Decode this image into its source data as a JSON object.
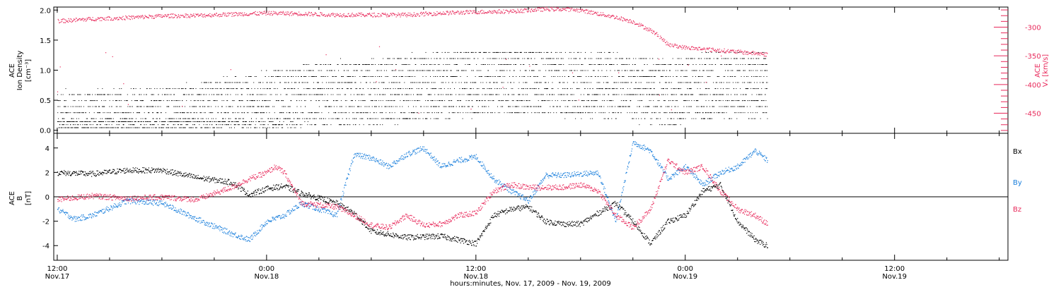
{
  "colors": {
    "black": "#000000",
    "pink": "#e8285a",
    "blue": "#1a7fdc"
  },
  "x_axis": {
    "ticks": [
      {
        "time": "12:00",
        "date": "Nov.17",
        "hours": 12
      },
      {
        "time": "0:00",
        "date": "Nov.18",
        "hours": 24
      },
      {
        "time": "12:00",
        "date": "Nov.18",
        "hours": 36
      },
      {
        "time": "0:00",
        "date": "Nov.19",
        "hours": 48
      },
      {
        "time": "12:00",
        "date": "Nov.19",
        "hours": 60
      }
    ],
    "title": "hours:minutes, Nov. 17, 2009 - Nov. 19, 2009"
  },
  "chart_data": [
    {
      "type": "scatter",
      "panel": "top",
      "ylabel_left": [
        "ACE",
        "Ion Density",
        "[cm⁻³]"
      ],
      "ylabel_right": [
        "ACE",
        "Vₓ [km/s]"
      ],
      "ylim_left": [
        -0.05,
        2.05
      ],
      "yticks_left": [
        "0.0",
        "0.5",
        "1.0",
        "1.5",
        "2.0"
      ],
      "ylim_right": [
        -485,
        -265
      ],
      "yticks_right": [
        "-300",
        "-350",
        "-400",
        "-450"
      ],
      "xlim_hours": [
        11.8,
        66.5
      ],
      "series": [
        {
          "color_key": "black",
          "axis": "left",
          "note": "quantized density levels (dense dots)",
          "x": [
            12,
            18,
            23,
            24,
            28,
            32,
            36,
            40,
            44,
            47,
            48,
            50,
            52.7
          ],
          "y": [
            0.1,
            0.2,
            0.35,
            0.45,
            0.6,
            0.7,
            0.8,
            0.8,
            0.75,
            0.6,
            0.7,
            0.75,
            0.75
          ]
        },
        {
          "color_key": "pink",
          "axis": "right",
          "x": [
            12,
            14,
            16,
            18,
            20,
            21,
            22,
            24,
            26,
            28,
            30,
            32,
            34,
            36,
            38,
            40,
            41,
            42,
            44,
            45,
            46,
            46.5,
            47,
            48,
            50,
            52,
            52.7
          ],
          "y": [
            -289,
            -285,
            -283,
            -280,
            -279,
            -278,
            -277,
            -275,
            -276,
            -278,
            -278,
            -278,
            -275,
            -273,
            -272,
            -268,
            -268,
            -270,
            -282,
            -290,
            -305,
            -315,
            -330,
            -335,
            -340,
            -345,
            -347
          ]
        }
      ]
    },
    {
      "type": "scatter",
      "panel": "bottom",
      "ylabel_left": [
        "ACE",
        "B",
        "[nT]"
      ],
      "ylim": [
        -5.2,
        5.2
      ],
      "yticks": [
        "4",
        "2",
        "0",
        "-2",
        "-4"
      ],
      "zero_line": true,
      "legend": [
        {
          "label": "Bx",
          "color_key": "black"
        },
        {
          "label": "By",
          "color_key": "blue"
        },
        {
          "label": "Bz",
          "color_key": "pink"
        }
      ],
      "xlim_hours": [
        11.8,
        66.5
      ],
      "series": [
        {
          "name": "Bx",
          "color_key": "black",
          "x": [
            12,
            14,
            16,
            18,
            20,
            22,
            23,
            24,
            25,
            26,
            28,
            29,
            30,
            32,
            34,
            36,
            37,
            38,
            39,
            40,
            41,
            42,
            43,
            44,
            45,
            46,
            47,
            48,
            49,
            50,
            51,
            52,
            52.7
          ],
          "y": [
            2.0,
            1.9,
            2.2,
            2.2,
            1.6,
            1.2,
            0.2,
            0.7,
            0.9,
            0.3,
            -0.5,
            -1.3,
            -2.8,
            -3.3,
            -3.2,
            -3.8,
            -1.5,
            -1.0,
            -0.8,
            -2.0,
            -2.2,
            -2.2,
            -1.3,
            -0.5,
            -2.0,
            -3.8,
            -2.0,
            -1.5,
            0.5,
            1.0,
            -2.0,
            -3.5,
            -4.0
          ]
        },
        {
          "name": "By",
          "color_key": "blue",
          "x": [
            12,
            13,
            14,
            16,
            18,
            20,
            22,
            23,
            24,
            25,
            26,
            27,
            28,
            29,
            30,
            31,
            32,
            33,
            34,
            35,
            36,
            37,
            38,
            39,
            40,
            41,
            42,
            43,
            44,
            45,
            46,
            47,
            48,
            49,
            50,
            51,
            52,
            52.7
          ],
          "y": [
            -1.0,
            -1.8,
            -1.5,
            -0.3,
            -0.5,
            -1.8,
            -3.0,
            -3.5,
            -2.0,
            -1.5,
            -0.5,
            -1.0,
            -1.5,
            3.5,
            3.2,
            2.5,
            3.5,
            4.0,
            2.5,
            3.0,
            3.3,
            1.5,
            0.5,
            -0.3,
            1.8,
            1.8,
            1.9,
            2.0,
            -2.0,
            4.5,
            3.8,
            1.5,
            2.5,
            1.0,
            2.0,
            2.5,
            3.8,
            3.0
          ]
        },
        {
          "name": "Bz",
          "color_key": "pink",
          "x": [
            12,
            14,
            16,
            18,
            20,
            22,
            23,
            24,
            24.5,
            25,
            26,
            28,
            29,
            30,
            31,
            32,
            33,
            34,
            35,
            36,
            37,
            38,
            39,
            40,
            41,
            42,
            43,
            44,
            45,
            46,
            47,
            48,
            49,
            50,
            51,
            52,
            52.7
          ],
          "y": [
            -0.2,
            0.1,
            -0.1,
            0.0,
            -0.2,
            0.8,
            1.5,
            2.0,
            2.5,
            2.0,
            -0.5,
            -0.8,
            -1.5,
            -2.3,
            -2.5,
            -1.5,
            -2.3,
            -2.2,
            -1.5,
            -1.3,
            0.5,
            1.0,
            0.8,
            0.8,
            0.8,
            1.0,
            0.5,
            -1.5,
            -2.5,
            -1.0,
            3.0,
            2.0,
            2.5,
            0.5,
            -1.0,
            -1.5,
            -2.2
          ]
        }
      ]
    }
  ]
}
